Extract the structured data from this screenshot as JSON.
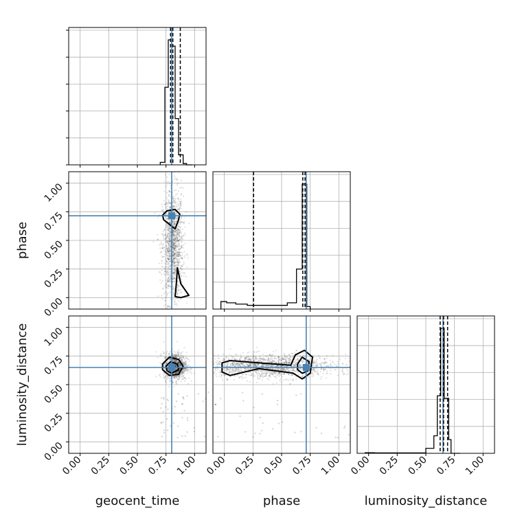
{
  "chart_data": {
    "type": "corner",
    "parameters": [
      "geocent_time",
      "phase",
      "luminosity_distance"
    ],
    "range": [
      -0.1,
      1.1
    ],
    "ticks": [
      0.0,
      0.25,
      0.5,
      0.75,
      1.0
    ],
    "tick_labels": [
      "0.00",
      "0.25",
      "0.50",
      "0.75",
      "1.00"
    ],
    "grid": true,
    "injection": {
      "geocent_time": 0.8,
      "phase": 0.715,
      "luminosity_distance": 0.65
    },
    "colors": {
      "injection": "#4682b4",
      "hist": "#000000",
      "samples": "#000000",
      "grid": "#b0b0b0"
    },
    "histograms": {
      "geocent_time": {
        "bin_edges": [
          0.7,
          0.74,
          0.77,
          0.8,
          0.83,
          0.86,
          0.9,
          0.93,
          0.98
        ],
        "counts": [
          0.02,
          0.62,
          1.0,
          0.95,
          0.37,
          0.08,
          0.01,
          0.0
        ],
        "quantiles": [
          0.79,
          0.81,
          0.875
        ]
      },
      "phase": {
        "bin_edges": [
          -0.03,
          0.02,
          0.1,
          0.2,
          0.3,
          0.4,
          0.55,
          0.63,
          0.68,
          0.72,
          0.75
        ],
        "counts": [
          0.06,
          0.05,
          0.04,
          0.03,
          0.03,
          0.03,
          0.05,
          0.32,
          1.0,
          0.02
        ],
        "quantiles": [
          0.255,
          0.685,
          0.705
        ]
      },
      "luminosity_distance": {
        "bin_edges": [
          -0.03,
          0.05,
          0.5,
          0.57,
          0.6,
          0.63,
          0.66,
          0.7,
          0.72,
          0.8
        ],
        "counts": [
          0.005,
          0.003,
          0.04,
          0.14,
          0.46,
          1.0,
          0.44,
          0.11,
          0.0
        ],
        "quantiles": [
          0.625,
          0.655,
          0.69
        ]
      }
    },
    "scatter": [
      {
        "x": "geocent_time",
        "y": "phase",
        "center": [
          0.81,
          0.45
        ],
        "spread": [
          0.045,
          0.25
        ],
        "count": 1400
      },
      {
        "x": "geocent_time",
        "y": "luminosity_distance",
        "center": [
          0.83,
          0.66
        ],
        "spread": [
          0.05,
          0.06
        ],
        "count": 1000
      },
      {
        "x": "phase",
        "y": "luminosity_distance",
        "center": [
          0.4,
          0.66
        ],
        "spread": [
          0.28,
          0.05
        ],
        "count": 1600
      }
    ],
    "contours": [
      {
        "x": "geocent_time",
        "y": "phase",
        "levels": [
          [
            [
              0.72,
              0.72
            ],
            [
              0.76,
              0.76
            ],
            [
              0.83,
              0.77
            ],
            [
              0.87,
              0.73
            ],
            [
              0.86,
              0.68
            ],
            [
              0.83,
              0.6
            ],
            [
              0.78,
              0.64
            ],
            [
              0.73,
              0.68
            ]
          ],
          [
            [
              0.85,
              0.26
            ],
            [
              0.88,
              0.12
            ],
            [
              0.95,
              0.02
            ],
            [
              0.88,
              0.0
            ],
            [
              0.83,
              0.01
            ],
            [
              0.84,
              0.12
            ]
          ]
        ]
      },
      {
        "x": "geocent_time",
        "y": "luminosity_distance",
        "levels": [
          [
            [
              0.72,
              0.68
            ],
            [
              0.78,
              0.74
            ],
            [
              0.86,
              0.72
            ],
            [
              0.9,
              0.66
            ],
            [
              0.86,
              0.59
            ],
            [
              0.78,
              0.58
            ],
            [
              0.72,
              0.63
            ]
          ],
          [
            [
              0.75,
              0.66
            ],
            [
              0.79,
              0.7
            ],
            [
              0.85,
              0.68
            ],
            [
              0.86,
              0.63
            ],
            [
              0.8,
              0.6
            ],
            [
              0.76,
              0.62
            ]
          ]
        ]
      },
      {
        "x": "phase",
        "y": "luminosity_distance",
        "levels": [
          [
            [
              -0.02,
              0.69
            ],
            [
              0.05,
              0.71
            ],
            [
              0.3,
              0.69
            ],
            [
              0.58,
              0.67
            ],
            [
              0.62,
              0.76
            ],
            [
              0.7,
              0.8
            ],
            [
              0.77,
              0.74
            ],
            [
              0.75,
              0.6
            ],
            [
              0.68,
              0.55
            ],
            [
              0.6,
              0.6
            ],
            [
              0.3,
              0.64
            ],
            [
              0.05,
              0.58
            ],
            [
              -0.02,
              0.61
            ]
          ],
          [
            [
              0.64,
              0.68
            ],
            [
              0.68,
              0.74
            ],
            [
              0.74,
              0.7
            ],
            [
              0.73,
              0.62
            ],
            [
              0.68,
              0.6
            ],
            [
              0.64,
              0.63
            ]
          ]
        ]
      }
    ]
  }
}
